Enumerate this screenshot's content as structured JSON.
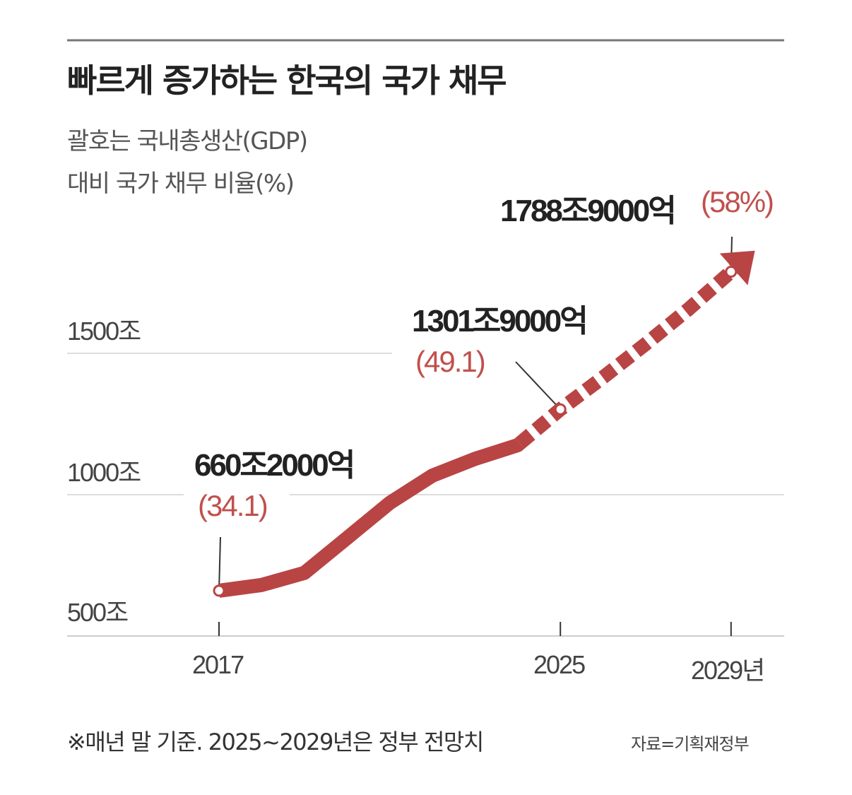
{
  "chart_data": {
    "type": "line",
    "title": "빠르게 증가하는 한국의 국가 채무",
    "subtitle": [
      "괄호는 국내총생산(GDP)",
      "대비 국가 채무 비율(%)"
    ],
    "xlabel": "",
    "ylabel": "",
    "x": [
      2017,
      2018,
      2019,
      2020,
      2021,
      2022,
      2023,
      2024,
      2025,
      2026,
      2027,
      2028,
      2029
    ],
    "values": [
      660.2,
      680.5,
      723.2,
      846.6,
      970.7,
      1067.4,
      1126.7,
      1175.2,
      1301.9,
      1415,
      1533,
      1656,
      1788.9
    ],
    "projected_from": 2024,
    "ylim": [
      500,
      1800
    ],
    "xlim": [
      2017,
      2030
    ],
    "y_ticks": [
      {
        "value": 500,
        "label": "500조"
      },
      {
        "value": 1000,
        "label": "1000조"
      },
      {
        "value": 1500,
        "label": "1500조"
      }
    ],
    "x_ticks": [
      {
        "value": 2017,
        "label": "2017"
      },
      {
        "value": 2025,
        "label": "2025"
      },
      {
        "value": 2029,
        "label": "2029년"
      }
    ],
    "annotations": [
      {
        "year": 2017,
        "label": "660조2000억",
        "pct": "(34.1)"
      },
      {
        "year": 2025,
        "label": "1301조9000억",
        "pct": "(49.1)"
      },
      {
        "year": 2029,
        "label": "1788조9000억",
        "pct": "(58%)"
      }
    ],
    "grid": true,
    "colors": {
      "line": "#b94444",
      "pct_text": "#c0504d",
      "grid": "#dddddd"
    }
  },
  "footer": {
    "note": "※매년 말 기준. 2025~2029년은 정부 전망치",
    "source": "자료=기획재정부"
  }
}
